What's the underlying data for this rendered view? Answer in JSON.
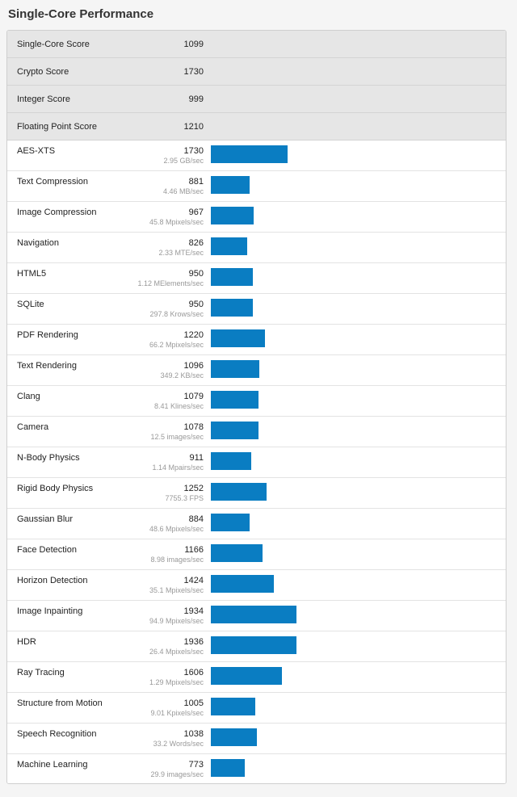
{
  "title": "Single-Core Performance",
  "bar_color": "#0a7dc2",
  "bar_scale_max": 1936,
  "summary": [
    {
      "label": "Single-Core Score",
      "score": "1099"
    },
    {
      "label": "Crypto Score",
      "score": "1730"
    },
    {
      "label": "Integer Score",
      "score": "999"
    },
    {
      "label": "Floating Point Score",
      "score": "1210"
    }
  ],
  "benchmarks": [
    {
      "label": "AES-XTS",
      "score": 1730,
      "sub": "2.95 GB/sec"
    },
    {
      "label": "Text Compression",
      "score": 881,
      "sub": "4.46 MB/sec"
    },
    {
      "label": "Image Compression",
      "score": 967,
      "sub": "45.8 Mpixels/sec"
    },
    {
      "label": "Navigation",
      "score": 826,
      "sub": "2.33 MTE/sec"
    },
    {
      "label": "HTML5",
      "score": 950,
      "sub": "1.12 MElements/sec"
    },
    {
      "label": "SQLite",
      "score": 950,
      "sub": "297.8 Krows/sec"
    },
    {
      "label": "PDF Rendering",
      "score": 1220,
      "sub": "66.2 Mpixels/sec"
    },
    {
      "label": "Text Rendering",
      "score": 1096,
      "sub": "349.2 KB/sec"
    },
    {
      "label": "Clang",
      "score": 1079,
      "sub": "8.41 Klines/sec"
    },
    {
      "label": "Camera",
      "score": 1078,
      "sub": "12.5 images/sec"
    },
    {
      "label": "N-Body Physics",
      "score": 911,
      "sub": "1.14 Mpairs/sec"
    },
    {
      "label": "Rigid Body Physics",
      "score": 1252,
      "sub": "7755.3 FPS"
    },
    {
      "label": "Gaussian Blur",
      "score": 884,
      "sub": "48.6 Mpixels/sec"
    },
    {
      "label": "Face Detection",
      "score": 1166,
      "sub": "8.98 images/sec"
    },
    {
      "label": "Horizon Detection",
      "score": 1424,
      "sub": "35.1 Mpixels/sec"
    },
    {
      "label": "Image Inpainting",
      "score": 1934,
      "sub": "94.9 Mpixels/sec"
    },
    {
      "label": "HDR",
      "score": 1936,
      "sub": "26.4 Mpixels/sec"
    },
    {
      "label": "Ray Tracing",
      "score": 1606,
      "sub": "1.29 Mpixels/sec"
    },
    {
      "label": "Structure from Motion",
      "score": 1005,
      "sub": "9.01 Kpixels/sec"
    },
    {
      "label": "Speech Recognition",
      "score": 1038,
      "sub": "33.2 Words/sec"
    },
    {
      "label": "Machine Learning",
      "score": 773,
      "sub": "29.9 images/sec"
    }
  ]
}
